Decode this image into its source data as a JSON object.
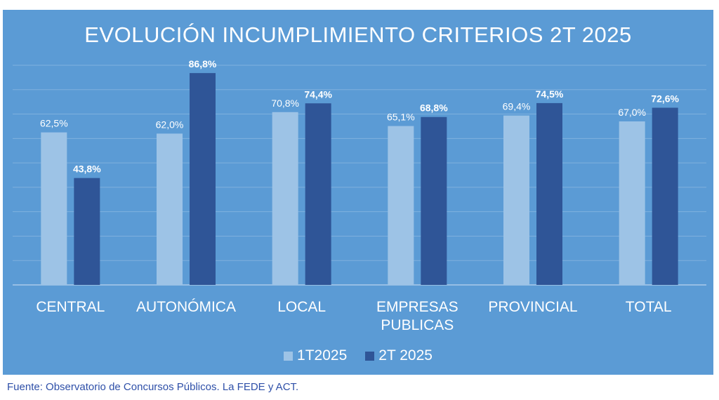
{
  "chart_data": {
    "type": "bar",
    "title": "EVOLUCIÓN INCUMPLIMIENTO CRITERIOS 2T 2025",
    "categories": [
      [
        "CENTRAL"
      ],
      [
        "AUTONÓMICA"
      ],
      [
        "LOCAL"
      ],
      [
        "EMPRESAS",
        "PUBLICAS"
      ],
      [
        "PROVINCIAL"
      ],
      [
        "TOTAL"
      ]
    ],
    "series": [
      {
        "name": "1T2025",
        "color": "#9dc3e6",
        "values": [
          62.5,
          62.0,
          70.8,
          65.1,
          69.4,
          67.0
        ],
        "labels": [
          "62,5%",
          "62,0%",
          "70,8%",
          "65,1%",
          "69,4%",
          "67,0%"
        ],
        "label_bold": false
      },
      {
        "name": "2T 2025",
        "color": "#2f5597",
        "values": [
          43.8,
          86.8,
          74.4,
          68.8,
          74.5,
          72.6
        ],
        "labels": [
          "43,8%",
          "86,8%",
          "74,4%",
          "68,8%",
          "74,5%",
          "72,6%"
        ],
        "label_bold": true
      }
    ],
    "ylim": [
      0,
      90
    ],
    "grid": true,
    "legend_position": "bottom"
  },
  "footer": {
    "source": "Fuente: Observatorio de Concursos Públicos. La FEDE y ACT."
  }
}
